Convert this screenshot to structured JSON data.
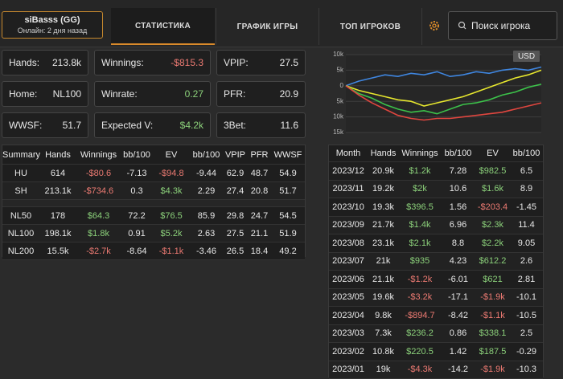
{
  "header": {
    "profile": {
      "name": "siBasss (GG)",
      "status": "Онлайн: 2 дня назад"
    },
    "tabs": [
      "СТАТИСТИКА",
      "ГРАФИК ИГРЫ",
      "ТОП ИГРОКОВ"
    ],
    "search": "Поиск игрока"
  },
  "stats": [
    {
      "label": "Hands:",
      "value": "213.8k"
    },
    {
      "label": "Winnings:",
      "value": "-$815.3"
    },
    {
      "label": "VPIP:",
      "value": "27.5"
    },
    {
      "label": "Home:",
      "value": "NL100"
    },
    {
      "label": "Winrate:",
      "value": "0.27"
    },
    {
      "label": "PFR:",
      "value": "20.9"
    },
    {
      "label": "WWSF:",
      "value": "51.7"
    },
    {
      "label": "Expected V:",
      "value": "$4.2k"
    },
    {
      "label": "3Bet:",
      "value": "11.6"
    }
  ],
  "chart": {
    "type": "line",
    "label": "USD",
    "ylim": [
      -15000,
      10000
    ],
    "yticks": [
      {
        "value": 10000,
        "label": "10k"
      },
      {
        "value": 5000,
        "label": "5k"
      },
      0,
      {
        "value": -5000,
        "label": "5k"
      },
      {
        "value": -10000,
        "label": "10k"
      },
      {
        "value": -15000,
        "label": "15k"
      }
    ],
    "grid": true,
    "series": [
      {
        "color": "#3f86e0",
        "values": [
          0,
          1500,
          2500,
          3500,
          3000,
          4000,
          3500,
          4500,
          3000,
          3500,
          4500,
          4000,
          5000,
          5500,
          5000,
          6000
        ]
      },
      {
        "color": "#e6e62e",
        "values": [
          0,
          -1500,
          -2500,
          -3500,
          -4500,
          -5000,
          -6500,
          -5500,
          -4500,
          -3500,
          -2000,
          -500,
          1000,
          2500,
          3500,
          5000
        ]
      },
      {
        "color": "#3cc24a",
        "values": [
          0,
          -2500,
          -4000,
          -6000,
          -7500,
          -8500,
          -8000,
          -9000,
          -7500,
          -6000,
          -5500,
          -4500,
          -3000,
          -2000,
          -500,
          500
        ]
      },
      {
        "color": "#e0463f",
        "values": [
          0,
          -3000,
          -5500,
          -7500,
          -9500,
          -10500,
          -11000,
          -10500,
          -10500,
          -10000,
          -9500,
          -9000,
          -8500,
          -7500,
          -6500,
          -5500
        ]
      }
    ]
  },
  "summary": {
    "columns": [
      "Summary",
      "Hands",
      "Winnings",
      "bb/100",
      "EV",
      "bb/100",
      "VPIP",
      "PFR",
      "WWSF"
    ],
    "groups": [
      [
        [
          "HU",
          "614",
          "-$80.6",
          "-7.13",
          "-$94.8",
          "-9.44",
          "62.9",
          "48.7",
          "54.9"
        ],
        [
          "SH",
          "213.1k",
          "-$734.6",
          "0.3",
          "$4.3k",
          "2.29",
          "27.4",
          "20.8",
          "51.7"
        ]
      ],
      [
        [
          "NL50",
          "178",
          "$64.3",
          "72.2",
          "$76.5",
          "85.9",
          "29.8",
          "24.7",
          "54.5"
        ],
        [
          "NL100",
          "198.1k",
          "$1.8k",
          "0.91",
          "$5.2k",
          "2.63",
          "27.5",
          "21.1",
          "51.9"
        ],
        [
          "NL200",
          "15.5k",
          "-$2.7k",
          "-8.64",
          "-$1.1k",
          "-3.46",
          "26.5",
          "18.4",
          "49.2"
        ]
      ]
    ]
  },
  "monthly": {
    "columns": [
      "Month",
      "Hands",
      "Winnings",
      "bb/100",
      "EV",
      "bb/100"
    ],
    "rows": [
      [
        "2023/12",
        "20.9k",
        "$1.2k",
        "7.28",
        "$982.5",
        "6.5"
      ],
      [
        "2023/11",
        "19.2k",
        "$2k",
        "10.6",
        "$1.6k",
        "8.9"
      ],
      [
        "2023/10",
        "19.3k",
        "$396.5",
        "1.56",
        "-$203.4",
        "-1.45"
      ],
      [
        "2023/09",
        "21.7k",
        "$1.4k",
        "6.96",
        "$2.3k",
        "11.4"
      ],
      [
        "2023/08",
        "23.1k",
        "$2.1k",
        "8.8",
        "$2.2k",
        "9.05"
      ],
      [
        "2023/07",
        "21k",
        "$935",
        "4.23",
        "$612.2",
        "2.6"
      ],
      [
        "2023/06",
        "21.1k",
        "-$1.2k",
        "-6.01",
        "$621",
        "2.81"
      ],
      [
        "2023/05",
        "19.6k",
        "-$3.2k",
        "-17.1",
        "-$1.9k",
        "-10.1"
      ],
      [
        "2023/04",
        "9.8k",
        "-$894.7",
        "-8.42",
        "-$1.1k",
        "-10.5"
      ],
      [
        "2023/03",
        "7.3k",
        "$236.2",
        "0.86",
        "$338.1",
        "2.5"
      ],
      [
        "2023/02",
        "10.8k",
        "$220.5",
        "1.42",
        "$187.5",
        "-0.29"
      ],
      [
        "2023/01",
        "19k",
        "-$4.3k",
        "-14.2",
        "-$1.9k",
        "-10.3"
      ]
    ]
  }
}
